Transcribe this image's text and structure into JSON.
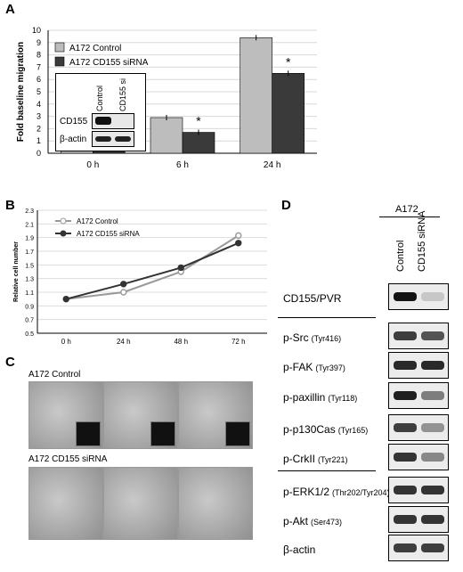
{
  "panels": {
    "a": "A",
    "b": "B",
    "c": "C",
    "d": "D"
  },
  "chart_data": [
    {
      "type": "bar",
      "ylabel": "Fold baseline migration",
      "categories": [
        "0 h",
        "6 h",
        "24 h"
      ],
      "ylim": [
        0,
        10
      ],
      "yticks": [
        0,
        1,
        2,
        3,
        4,
        5,
        6,
        7,
        8,
        9,
        10
      ],
      "legend": "top-left",
      "series": [
        {
          "name": "A172 Control",
          "values": [
            1.0,
            2.9,
            9.4
          ],
          "color": "#bdbdbd"
        },
        {
          "name": "A172 CD155 siRNA",
          "values": [
            1.0,
            1.7,
            6.5
          ],
          "color": "#3a3a3a"
        }
      ],
      "significance": [
        "",
        "*",
        "*"
      ],
      "inset_blot": {
        "columns": [
          "Control",
          "CD155 si"
        ],
        "rows": [
          "CD155",
          "β-actin"
        ]
      }
    },
    {
      "type": "line",
      "ylabel": "Relative cell number",
      "categories": [
        "0 h",
        "24 h",
        "48 h",
        "72 h"
      ],
      "ylim": [
        0.5,
        2.3
      ],
      "yticks": [
        "0.5",
        "0.7",
        "0.9",
        "1.1",
        "1.3",
        "1.5",
        "1.7",
        "1.9",
        "2.1",
        "2.3"
      ],
      "legend": "top-left",
      "series": [
        {
          "name": "A172 Control",
          "values": [
            1.0,
            1.1,
            1.4,
            1.93
          ],
          "color": "#999999"
        },
        {
          "name": "A172 CD155 siRNA",
          "values": [
            1.0,
            1.22,
            1.46,
            1.82
          ],
          "color": "#333333"
        }
      ]
    }
  ],
  "panel_c": {
    "row1_title": "A172 Control",
    "row2_title": "A172 CD155 siRNA"
  },
  "panel_d": {
    "cell_line": "A172",
    "columns": [
      "Control",
      "CD155 siRNA"
    ],
    "rows": [
      {
        "main": "CD155/PVR",
        "sub": ""
      },
      {
        "main": "p-Src",
        "sub": "(Tyr416)"
      },
      {
        "main": "p-FAK",
        "sub": "(Tyr397)"
      },
      {
        "main": "p-paxillin",
        "sub": "(Tyr118)"
      },
      {
        "main": "p-p130Cas",
        "sub": "(Tyr165)"
      },
      {
        "main": "p-CrkII",
        "sub": "(Tyr221)"
      },
      {
        "main": "p-ERK1/2",
        "sub": "(Thr202/Tyr204)"
      },
      {
        "main": "p-Akt",
        "sub": "(Ser473)"
      },
      {
        "main": "β-actin",
        "sub": ""
      }
    ]
  }
}
